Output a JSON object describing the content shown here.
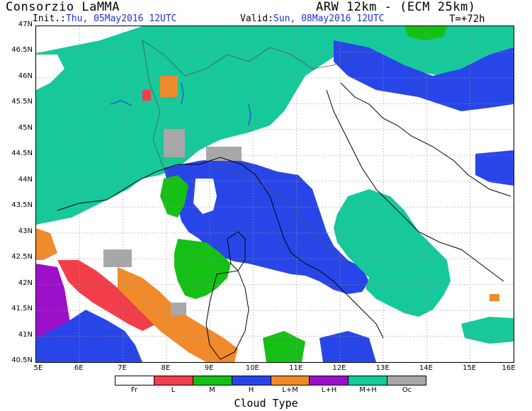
{
  "header": {
    "brand": "Consorzio LaMMA",
    "model": "ARW 12km - (ECM 25km)",
    "init_label": "Init.:",
    "init_value": "Thu, 05May2016 12UTC",
    "valid_label": "Valid:",
    "valid_value": "Sun, 08May2016 12UTC",
    "step": "T=+72h"
  },
  "map": {
    "lat_labels": [
      "47N",
      "46.5N",
      "46N",
      "45.5N",
      "45N",
      "44.5N",
      "44N",
      "43.5N",
      "43N",
      "42.5N",
      "42N",
      "41.5N",
      "41N",
      "40.5N"
    ],
    "lon_labels": [
      "5E",
      "6E",
      "7E",
      "8E",
      "9E",
      "10E",
      "11E",
      "12E",
      "13E",
      "14E",
      "15E",
      "16E"
    ],
    "lat_range": [
      40.5,
      47
    ],
    "lon_range": [
      5,
      16
    ],
    "grid": true
  },
  "legend": {
    "title": "Cloud Type",
    "items": [
      {
        "label": "Fr",
        "color": "#ffffff"
      },
      {
        "label": "L",
        "color": "#f23d4a"
      },
      {
        "label": "M",
        "color": "#16bf16"
      },
      {
        "label": "H",
        "color": "#2846e8"
      },
      {
        "label": "L+M",
        "color": "#f08a2a"
      },
      {
        "label": "L+H",
        "color": "#9b10c8"
      },
      {
        "label": "M+H",
        "color": "#16c89a"
      },
      {
        "label": "Oc",
        "color": "#a8a8a8"
      }
    ]
  },
  "colors": {
    "coast": "#000000",
    "border": "#555555",
    "lake": "#2846e8",
    "grid": "#9a9a9a"
  }
}
